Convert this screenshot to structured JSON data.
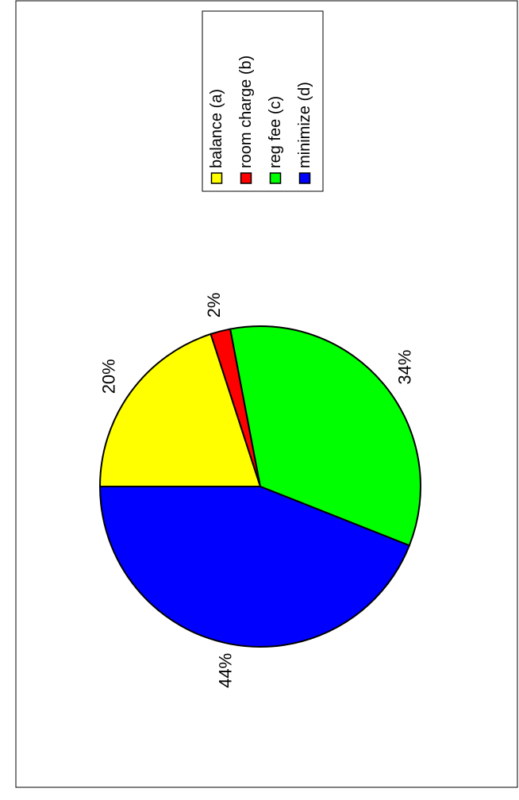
{
  "chart_data": {
    "type": "pie",
    "categories": [
      "balance (a)",
      "room charge (b)",
      "reg fee (c)",
      "minimize (d)"
    ],
    "values": [
      20,
      2,
      34,
      44
    ],
    "labels": [
      "20%",
      "2%",
      "34%",
      "44%"
    ],
    "colors": [
      "#ffff00",
      "#ff0000",
      "#00ff00",
      "#0000ff"
    ],
    "legend": {
      "placement": "top-right",
      "entries": [
        "balance (a)",
        "room charge (b)",
        "reg fee (c)",
        "minimize (d)"
      ]
    },
    "orientation": "rotated 90° counter-clockwise"
  }
}
